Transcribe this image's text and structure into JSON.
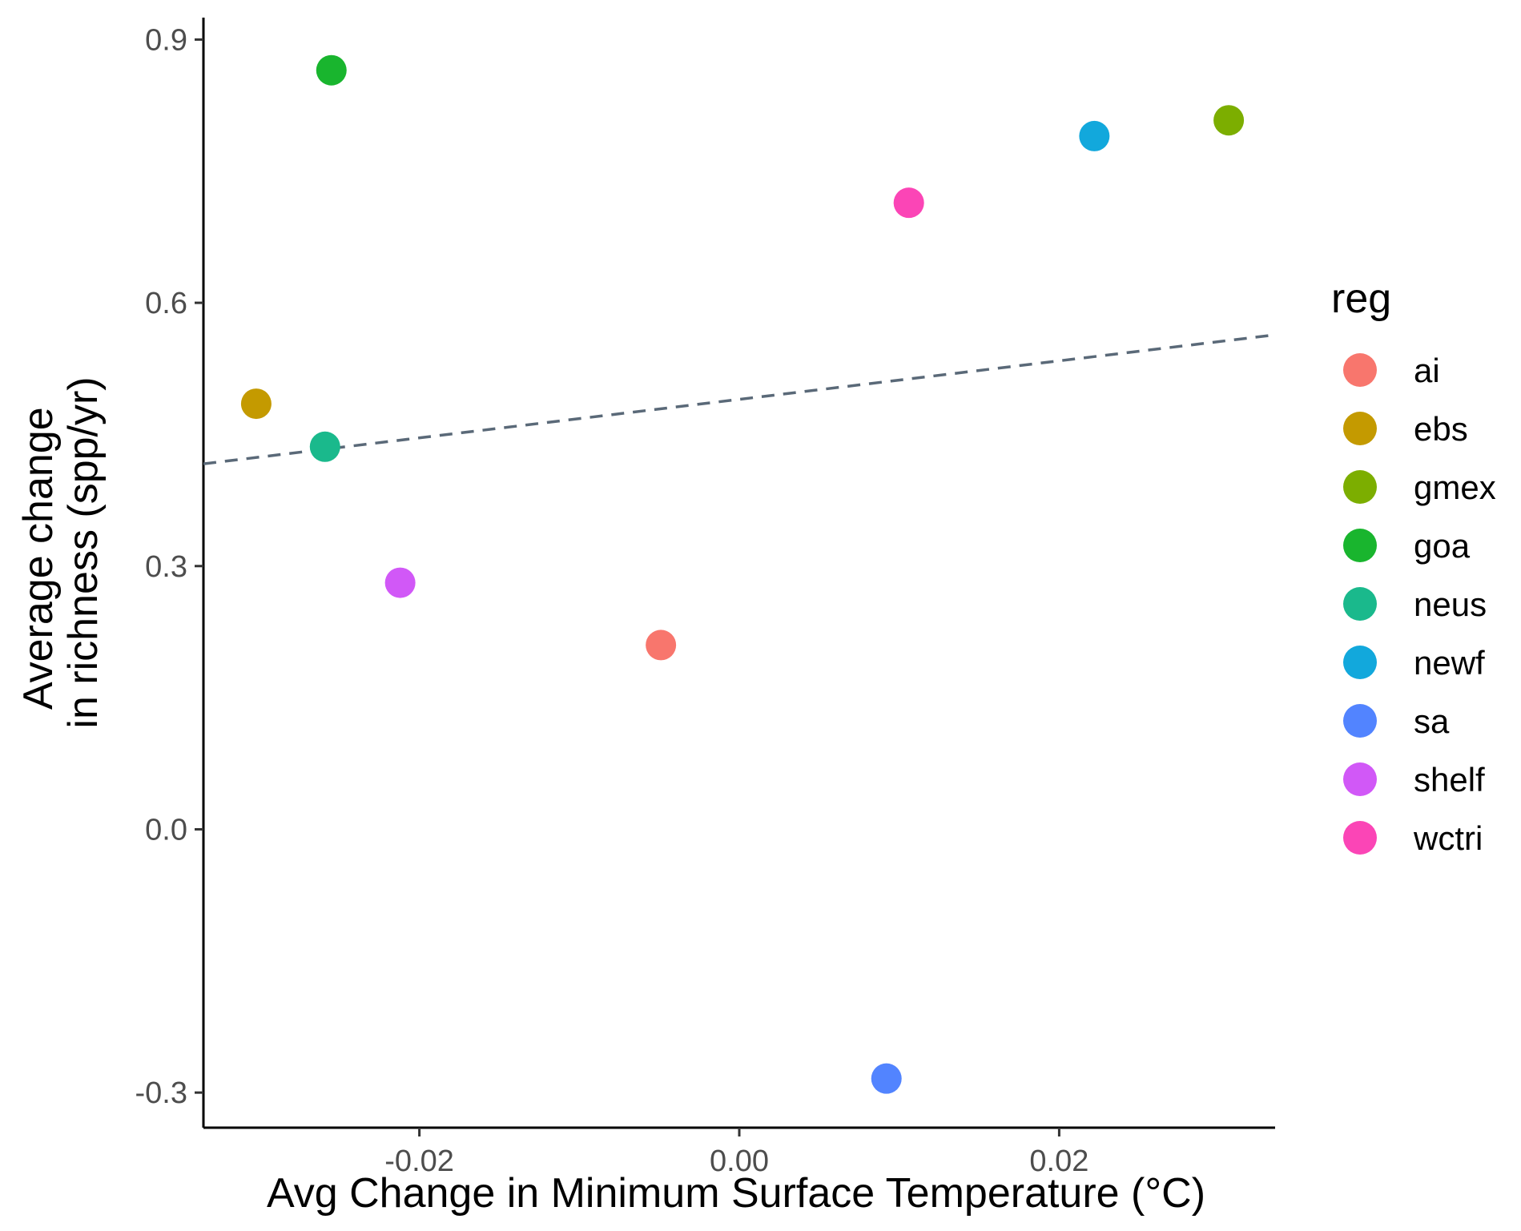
{
  "chart_data": {
    "type": "scatter",
    "xlabel": "Avg Change in Minimum Surface Temperature (°C)",
    "ylabel_lines": [
      "Average change",
      "in richness (spp/yr)"
    ],
    "xlim": [
      -0.0335,
      0.0335
    ],
    "ylim": [
      -0.34,
      0.925
    ],
    "x_ticks": [
      {
        "value": -0.02,
        "label": "-0.02"
      },
      {
        "value": 0.0,
        "label": "0.00"
      },
      {
        "value": 0.02,
        "label": "0.02"
      }
    ],
    "y_ticks": [
      {
        "value": -0.3,
        "label": "-0.3"
      },
      {
        "value": 0.0,
        "label": "0.0"
      },
      {
        "value": 0.3,
        "label": "0.3"
      },
      {
        "value": 0.6,
        "label": "0.6"
      },
      {
        "value": 0.9,
        "label": "0.9"
      }
    ],
    "grid": false,
    "legend": {
      "title": "reg",
      "position": "right"
    },
    "points": [
      {
        "reg": "ai",
        "x": -0.0049,
        "y": 0.21,
        "color": "#F8766D"
      },
      {
        "reg": "ebs",
        "x": -0.0302,
        "y": 0.485,
        "color": "#C49A00"
      },
      {
        "reg": "gmex",
        "x": 0.0306,
        "y": 0.808,
        "color": "#7CAE00"
      },
      {
        "reg": "goa",
        "x": -0.0255,
        "y": 0.865,
        "color": "#19B52E"
      },
      {
        "reg": "neus",
        "x": -0.0259,
        "y": 0.436,
        "color": "#1AB98C"
      },
      {
        "reg": "newf",
        "x": 0.0222,
        "y": 0.79,
        "color": "#12A8DC"
      },
      {
        "reg": "sa",
        "x": 0.0092,
        "y": -0.284,
        "color": "#5284FF"
      },
      {
        "reg": "shelf",
        "x": -0.0212,
        "y": 0.281,
        "color": "#D158F7"
      },
      {
        "reg": "wctri",
        "x": 0.0106,
        "y": 0.714,
        "color": "#FB45B6"
      }
    ],
    "trend_line": {
      "style": "dashed",
      "color": "#5a6978",
      "x": [
        -0.0335,
        0.0335
      ],
      "y": [
        0.4165,
        0.5635
      ]
    }
  }
}
